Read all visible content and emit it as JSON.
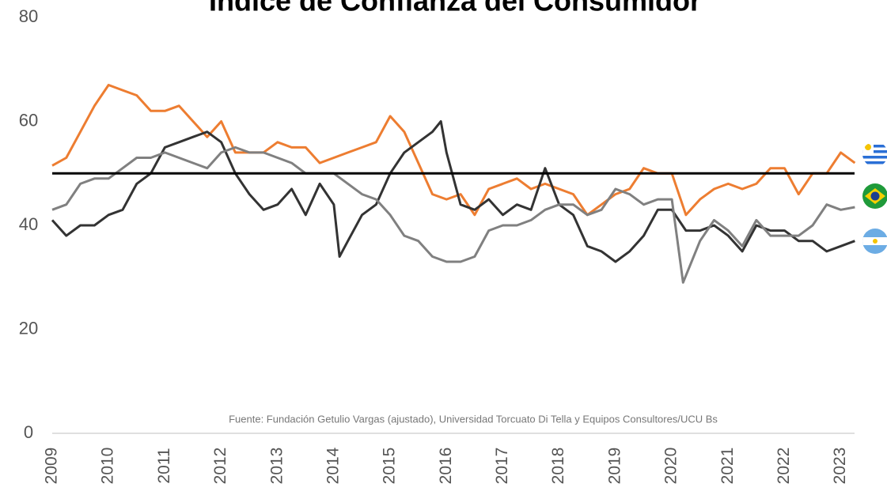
{
  "chart_data": {
    "type": "line",
    "title": "Índice de Confianza del Consumidor",
    "source": "Fuente: Fundación Getulio Vargas (ajustado), Universidad Torcuato Di Tella y Equipos Consultores/UCU Bs",
    "xlim": [
      2009,
      2023.3
    ],
    "xticks": [
      2009,
      2010,
      2011,
      2012,
      2013,
      2014,
      2015,
      2016,
      2017,
      2018,
      2019,
      2020,
      2021,
      2022,
      2023
    ],
    "ylim": [
      0,
      80
    ],
    "yticks": [
      0,
      20,
      40,
      60,
      80
    ],
    "hline": 50,
    "series": [
      {
        "color": "#ed7d31",
        "x": [
          2009.0,
          2009.25,
          2009.5,
          2009.75,
          2010.0,
          2010.25,
          2010.5,
          2010.75,
          2011.0,
          2011.25,
          2011.5,
          2011.75,
          2012.0,
          2012.25,
          2012.5,
          2012.75,
          2013.0,
          2013.25,
          2013.5,
          2013.75,
          2014.0,
          2014.25,
          2014.5,
          2014.75,
          2015.0,
          2015.25,
          2015.5,
          2015.75,
          2016.0,
          2016.25,
          2016.5,
          2016.75,
          2017.0,
          2017.25,
          2017.5,
          2017.75,
          2018.0,
          2018.25,
          2018.5,
          2018.75,
          2019.0,
          2019.25,
          2019.5,
          2019.75,
          2020.0,
          2020.25,
          2020.5,
          2020.75,
          2021.0,
          2021.25,
          2021.5,
          2021.75,
          2022.0,
          2022.25,
          2022.5,
          2022.75,
          2023.0,
          2023.25
        ],
        "values": [
          51.5,
          53,
          58,
          63,
          67,
          66,
          65,
          62,
          62,
          63,
          60,
          57,
          60,
          54,
          54,
          54,
          56,
          55,
          55,
          52,
          53,
          54,
          55,
          56,
          61,
          58,
          52,
          46,
          45,
          46,
          42,
          47,
          48,
          49,
          47,
          48,
          47,
          46,
          42,
          44,
          46,
          47,
          51,
          50,
          50,
          42,
          45,
          47,
          48,
          47,
          48,
          51,
          51,
          46,
          50,
          50,
          54,
          52
        ]
      },
      {
        "color": "#333333",
        "x": [
          2009.0,
          2009.25,
          2009.5,
          2009.75,
          2010.0,
          2010.25,
          2010.5,
          2010.75,
          2011.0,
          2011.25,
          2011.5,
          2011.75,
          2012.0,
          2012.25,
          2012.5,
          2012.75,
          2013.0,
          2013.25,
          2013.5,
          2013.75,
          2014.0,
          2014.1,
          2014.25,
          2014.5,
          2014.75,
          2015.0,
          2015.25,
          2015.5,
          2015.75,
          2015.9,
          2016.0,
          2016.25,
          2016.5,
          2016.75,
          2017.0,
          2017.25,
          2017.5,
          2017.75,
          2018.0,
          2018.25,
          2018.5,
          2018.75,
          2019.0,
          2019.25,
          2019.5,
          2019.75,
          2020.0,
          2020.25,
          2020.5,
          2020.75,
          2021.0,
          2021.25,
          2021.5,
          2021.75,
          2022.0,
          2022.25,
          2022.5,
          2022.75,
          2023.0,
          2023.25
        ],
        "values": [
          41,
          38,
          40,
          40,
          42,
          43,
          48,
          50,
          55,
          56,
          57,
          58,
          56,
          50,
          46,
          43,
          44,
          47,
          42,
          48,
          44,
          34,
          37,
          42,
          44,
          50,
          54,
          56,
          58,
          60,
          54,
          44,
          43,
          45,
          42,
          44,
          43,
          51,
          44,
          42,
          36,
          35,
          33,
          35,
          38,
          43,
          43,
          39,
          39,
          40,
          38,
          35,
          40,
          39,
          39,
          37,
          37,
          35,
          36,
          37
        ]
      },
      {
        "color": "#808080",
        "x": [
          2009.0,
          2009.25,
          2009.5,
          2009.75,
          2010.0,
          2010.25,
          2010.5,
          2010.75,
          2011.0,
          2011.25,
          2011.5,
          2011.75,
          2012.0,
          2012.25,
          2012.5,
          2012.75,
          2013.0,
          2013.25,
          2013.5,
          2013.75,
          2014.0,
          2014.25,
          2014.5,
          2014.75,
          2015.0,
          2015.25,
          2015.5,
          2015.75,
          2016.0,
          2016.25,
          2016.5,
          2016.75,
          2017.0,
          2017.25,
          2017.5,
          2017.75,
          2018.0,
          2018.25,
          2018.5,
          2018.75,
          2019.0,
          2019.25,
          2019.5,
          2019.75,
          2020.0,
          2020.2,
          2020.5,
          2020.75,
          2021.0,
          2021.25,
          2021.5,
          2021.75,
          2022.0,
          2022.25,
          2022.5,
          2022.75,
          2023.0,
          2023.25
        ],
        "values": [
          43,
          44,
          48,
          49,
          49,
          51,
          53,
          53,
          54,
          53,
          52,
          51,
          54,
          55,
          54,
          54,
          53,
          52,
          50,
          50,
          50,
          48,
          46,
          45,
          42,
          38,
          37,
          34,
          33,
          33,
          34,
          39,
          40,
          40,
          41,
          43,
          44,
          44,
          42,
          43,
          47,
          46,
          44,
          45,
          45,
          29,
          37,
          41,
          39,
          36,
          41,
          38,
          38,
          38,
          40,
          44,
          43,
          43.5
        ]
      }
    ]
  }
}
